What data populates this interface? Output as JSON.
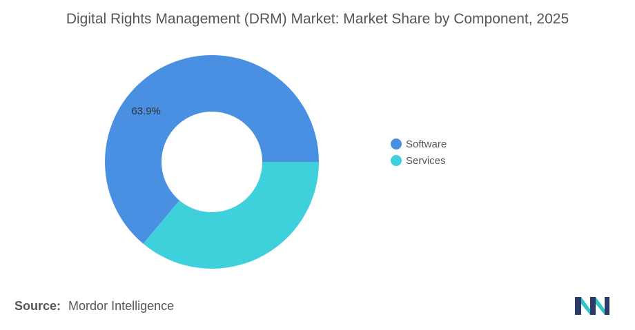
{
  "title": "Digital Rights Management (DRM) Market: Market Share by Component, 2025",
  "source": {
    "label": "Source:",
    "value": "Mordor Intelligence"
  },
  "chart_data": {
    "type": "pie",
    "style": "donut",
    "categories": [
      "Software",
      "Services"
    ],
    "values": [
      63.9,
      36.1
    ],
    "colors": [
      "#4A90E2",
      "#3ED1DB"
    ],
    "data_labels": [
      "63.9%",
      null
    ],
    "legend_position": "right"
  },
  "logo": {
    "icon": "mordor-intelligence-logo-icon",
    "colors": [
      "#2B3A67",
      "#2EC4C8"
    ]
  }
}
